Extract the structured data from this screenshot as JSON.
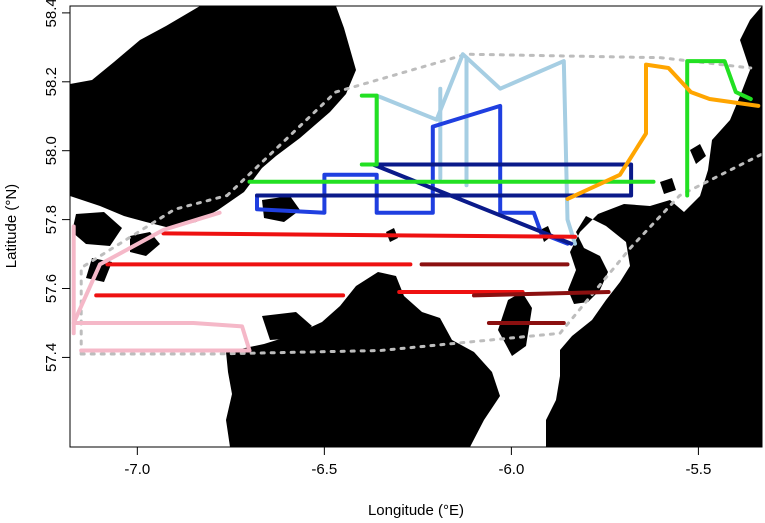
{
  "map": {
    "xlabel": "Longitude (°E)",
    "ylabel": "Latitude (°N)",
    "xlim": [
      -7.18,
      -5.33
    ],
    "ylim": [
      57.14,
      58.42
    ],
    "x_ticks": [
      {
        "value": -7.0,
        "label": "-7.0"
      },
      {
        "value": -6.5,
        "label": "-6.5"
      },
      {
        "value": -6.0,
        "label": "-6.0"
      },
      {
        "value": -5.5,
        "label": "-5.5"
      }
    ],
    "y_ticks": [
      {
        "value": 57.4,
        "label": "57.4"
      },
      {
        "value": 57.6,
        "label": "57.6"
      },
      {
        "value": 57.8,
        "label": "57.8"
      },
      {
        "value": 58.0,
        "label": "58.0"
      },
      {
        "value": 58.2,
        "label": "58.2"
      },
      {
        "value": 58.4,
        "label": "58.4"
      }
    ],
    "colors": {
      "land": "#000000",
      "boundary": "#bdbdbd",
      "light_blue": "#a6cee3",
      "blue": "#1f3fe0",
      "dark_blue": "#0a1a8a",
      "green": "#22e022",
      "orange": "#ffa500",
      "red": "#ee1111",
      "dark_red": "#8b1010",
      "pink": "#f5b8c8"
    },
    "tracks": [
      {
        "name": "light-blue-track",
        "color": "light_blue",
        "points": [
          [
            -6.36,
            57.96
          ],
          [
            -6.36,
            58.16
          ],
          [
            -6.2,
            58.09
          ],
          [
            -6.13,
            58.28
          ],
          [
            -6.03,
            58.18
          ],
          [
            -5.86,
            58.26
          ],
          [
            -5.85,
            57.8
          ],
          [
            -5.83,
            57.73
          ]
        ]
      },
      {
        "name": "light-blue-leg-2",
        "color": "light_blue",
        "points": [
          [
            -6.19,
            58.18
          ],
          [
            -6.19,
            57.92
          ]
        ]
      },
      {
        "name": "light-blue-leg-3",
        "color": "light_blue",
        "points": [
          [
            -6.12,
            58.27
          ],
          [
            -6.12,
            57.9
          ]
        ]
      },
      {
        "name": "blue-track",
        "color": "blue",
        "points": [
          [
            -6.68,
            57.87
          ],
          [
            -6.68,
            57.83
          ],
          [
            -6.5,
            57.82
          ],
          [
            -6.5,
            57.93
          ],
          [
            -6.36,
            57.93
          ],
          [
            -6.36,
            57.82
          ],
          [
            -6.21,
            57.82
          ],
          [
            -6.21,
            58.07
          ],
          [
            -6.03,
            58.13
          ],
          [
            -6.03,
            57.82
          ],
          [
            -5.94,
            57.82
          ],
          [
            -5.92,
            57.76
          ],
          [
            -5.85,
            57.73
          ]
        ]
      },
      {
        "name": "dark-blue-lines",
        "color": "dark_blue",
        "points": [
          [
            -6.68,
            57.87
          ],
          [
            -5.68,
            57.87
          ],
          [
            -5.68,
            57.96
          ],
          [
            -6.37,
            57.96
          ],
          [
            -5.84,
            57.73
          ]
        ]
      },
      {
        "name": "green-track",
        "color": "green",
        "points": [
          [
            -6.4,
            58.16
          ],
          [
            -6.36,
            58.16
          ],
          [
            -6.36,
            57.96
          ],
          [
            -6.4,
            57.96
          ]
        ]
      },
      {
        "name": "green-track-2",
        "color": "green",
        "points": [
          [
            -6.7,
            57.91
          ],
          [
            -5.62,
            57.91
          ]
        ]
      },
      {
        "name": "green-track-3",
        "color": "green",
        "points": [
          [
            -5.53,
            57.87
          ],
          [
            -5.53,
            58.26
          ],
          [
            -5.43,
            58.26
          ],
          [
            -5.4,
            58.17
          ],
          [
            -5.36,
            58.15
          ]
        ]
      },
      {
        "name": "orange-track",
        "color": "orange",
        "points": [
          [
            -5.85,
            57.86
          ],
          [
            -5.71,
            57.93
          ],
          [
            -5.64,
            58.05
          ],
          [
            -5.64,
            58.25
          ],
          [
            -5.58,
            58.24
          ],
          [
            -5.52,
            58.17
          ],
          [
            -5.47,
            58.15
          ],
          [
            -5.34,
            58.13
          ]
        ]
      },
      {
        "name": "red-line-1",
        "color": "red",
        "points": [
          [
            -6.93,
            57.76
          ],
          [
            -5.83,
            57.75
          ]
        ]
      },
      {
        "name": "red-line-2",
        "color": "red",
        "points": [
          [
            -7.08,
            57.67
          ],
          [
            -6.27,
            57.67
          ]
        ]
      },
      {
        "name": "red-line-3",
        "color": "red",
        "points": [
          [
            -7.11,
            57.58
          ],
          [
            -6.45,
            57.58
          ]
        ]
      },
      {
        "name": "red-line-4",
        "color": "red",
        "points": [
          [
            -6.3,
            57.59
          ],
          [
            -5.97,
            57.59
          ]
        ]
      },
      {
        "name": "dark-red-line-1",
        "color": "dark_red",
        "points": [
          [
            -6.24,
            57.67
          ],
          [
            -5.85,
            57.67
          ]
        ]
      },
      {
        "name": "dark-red-line-2",
        "color": "dark_red",
        "points": [
          [
            -6.1,
            57.58
          ],
          [
            -5.74,
            57.59
          ]
        ]
      },
      {
        "name": "dark-red-line-3",
        "color": "dark_red",
        "points": [
          [
            -6.06,
            57.5
          ],
          [
            -5.86,
            57.5
          ]
        ]
      },
      {
        "name": "pink-track",
        "color": "pink",
        "points": [
          [
            -6.78,
            57.82
          ],
          [
            -6.93,
            57.77
          ],
          [
            -7.1,
            57.67
          ],
          [
            -7.17,
            57.5
          ],
          [
            -6.85,
            57.5
          ],
          [
            -6.72,
            57.49
          ],
          [
            -6.7,
            57.42
          ],
          [
            -7.15,
            57.42
          ]
        ]
      },
      {
        "name": "pink-track-2",
        "color": "pink",
        "points": [
          [
            -7.17,
            57.47
          ],
          [
            -7.17,
            57.78
          ]
        ]
      }
    ],
    "boundary": [
      [
        -7.15,
        57.41
      ],
      [
        -6.8,
        57.41
      ],
      [
        -6.35,
        57.42
      ],
      [
        -5.87,
        57.47
      ],
      [
        -5.68,
        57.72
      ],
      [
        -5.55,
        57.87
      ],
      [
        -5.33,
        57.99
      ]
    ],
    "boundary_top": [
      [
        -6.76,
        57.87
      ],
      [
        -6.47,
        58.17
      ],
      [
        -6.12,
        58.28
      ],
      [
        -5.6,
        58.27
      ],
      [
        -5.36,
        58.24
      ]
    ],
    "boundary_left": [
      [
        -7.15,
        57.41
      ],
      [
        -7.15,
        57.66
      ],
      [
        -6.9,
        57.83
      ],
      [
        -6.76,
        57.87
      ]
    ]
  }
}
